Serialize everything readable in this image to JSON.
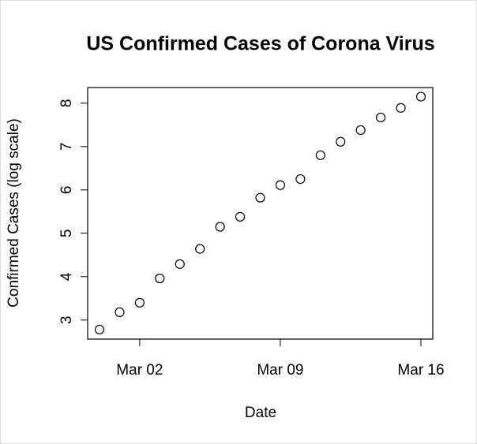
{
  "chart_data": {
    "type": "scatter",
    "title": "US Confirmed Cases of Corona Virus",
    "x_label": "Date",
    "y_label": "Confirmed Cases (log scale)",
    "x": [
      "Feb 29",
      "Mar 01",
      "Mar 02",
      "Mar 03",
      "Mar 04",
      "Mar 05",
      "Mar 06",
      "Mar 07",
      "Mar 08",
      "Mar 09",
      "Mar 10",
      "Mar 11",
      "Mar 12",
      "Mar 13",
      "Mar 14",
      "Mar 15",
      "Mar 16"
    ],
    "values": [
      2.78,
      3.18,
      3.4,
      3.96,
      4.29,
      4.64,
      5.15,
      5.38,
      5.82,
      6.11,
      6.25,
      6.8,
      7.11,
      7.38,
      7.67,
      7.89,
      8.15
    ],
    "xticks": [
      "Mar 02",
      "Mar 09",
      "Mar 16"
    ],
    "ylim": [
      2.56,
      8.36
    ],
    "yticks": [
      3,
      4,
      5,
      6,
      7,
      8
    ],
    "color": "#000000"
  }
}
